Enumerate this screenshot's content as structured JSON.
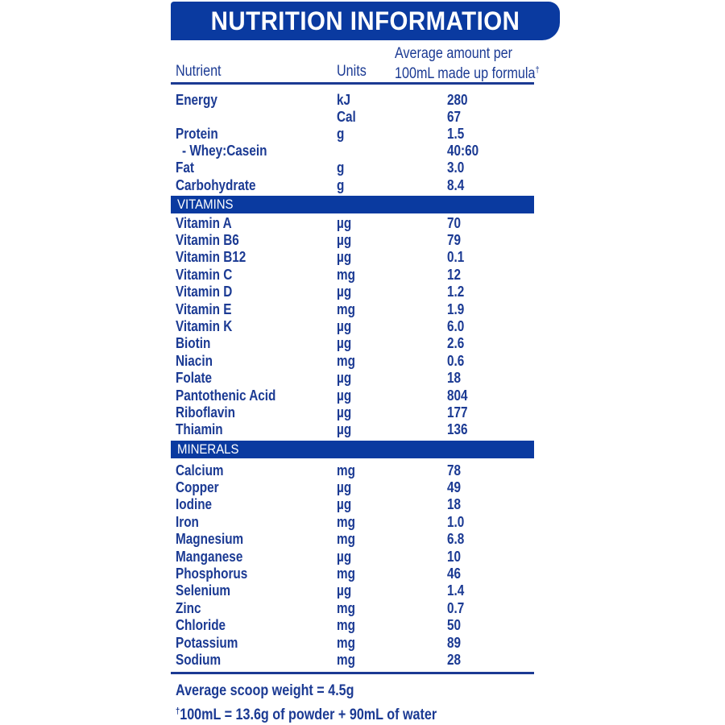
{
  "title": "NUTRITION INFORMATION",
  "columns": {
    "nutrient": "Nutrient",
    "units": "Units",
    "amount_line1": "Average amount per",
    "amount_line2": "100mL made up formula",
    "amount_mark": "†"
  },
  "main": [
    {
      "name": "Energy",
      "unit": "kJ",
      "value": "280"
    },
    {
      "name": "",
      "unit": "Cal",
      "value": "67"
    },
    {
      "name": "Protein",
      "unit": "g",
      "value": "1.5"
    },
    {
      "name": "- Whey:Casein",
      "unit": "",
      "value": "40:60",
      "indent": true
    },
    {
      "name": "Fat",
      "unit": "g",
      "value": "3.0"
    },
    {
      "name": "Carbohydrate",
      "unit": "g",
      "value": "8.4"
    }
  ],
  "vitamins": {
    "label": "VITAMINS",
    "rows": [
      {
        "name": "Vitamin A",
        "unit": "µg",
        "value": "70"
      },
      {
        "name": "Vitamin B6",
        "unit": "µg",
        "value": "79"
      },
      {
        "name": "Vitamin B12",
        "unit": "µg",
        "value": "0.1"
      },
      {
        "name": "Vitamin C",
        "unit": "mg",
        "value": "12"
      },
      {
        "name": "Vitamin D",
        "unit": "µg",
        "value": "1.2"
      },
      {
        "name": "Vitamin E",
        "unit": "mg",
        "value": "1.9"
      },
      {
        "name": "Vitamin K",
        "unit": "µg",
        "value": "6.0"
      },
      {
        "name": "Biotin",
        "unit": "µg",
        "value": "2.6"
      },
      {
        "name": "Niacin",
        "unit": "mg",
        "value": "0.6"
      },
      {
        "name": "Folate",
        "unit": "µg",
        "value": "18"
      },
      {
        "name": "Pantothenic Acid",
        "unit": "µg",
        "value": "804"
      },
      {
        "name": "Riboflavin",
        "unit": "µg",
        "value": "177"
      },
      {
        "name": "Thiamin",
        "unit": "µg",
        "value": "136"
      }
    ]
  },
  "minerals": {
    "label": "MINERALS",
    "rows": [
      {
        "name": "Calcium",
        "unit": "mg",
        "value": "78"
      },
      {
        "name": "Copper",
        "unit": "µg",
        "value": "49"
      },
      {
        "name": "Iodine",
        "unit": "µg",
        "value": "18"
      },
      {
        "name": "Iron",
        "unit": "mg",
        "value": "1.0"
      },
      {
        "name": "Magnesium",
        "unit": "mg",
        "value": "6.8"
      },
      {
        "name": "Manganese",
        "unit": "µg",
        "value": "10"
      },
      {
        "name": "Phosphorus",
        "unit": "mg",
        "value": "46"
      },
      {
        "name": "Selenium",
        "unit": "µg",
        "value": "1.4"
      },
      {
        "name": "Zinc",
        "unit": "mg",
        "value": "0.7"
      },
      {
        "name": "Chloride",
        "unit": "mg",
        "value": "50"
      },
      {
        "name": "Potassium",
        "unit": "mg",
        "value": "89"
      },
      {
        "name": "Sodium",
        "unit": "mg",
        "value": "28"
      }
    ]
  },
  "footer": {
    "scoop": "Average scoop weight = 4.5g",
    "mark": "†",
    "prep": "100mL  = 13.6g of powder + 90mL of water"
  },
  "colors": {
    "brand_blue": "#0a3aa0",
    "text_blue": "#1b3a93"
  }
}
